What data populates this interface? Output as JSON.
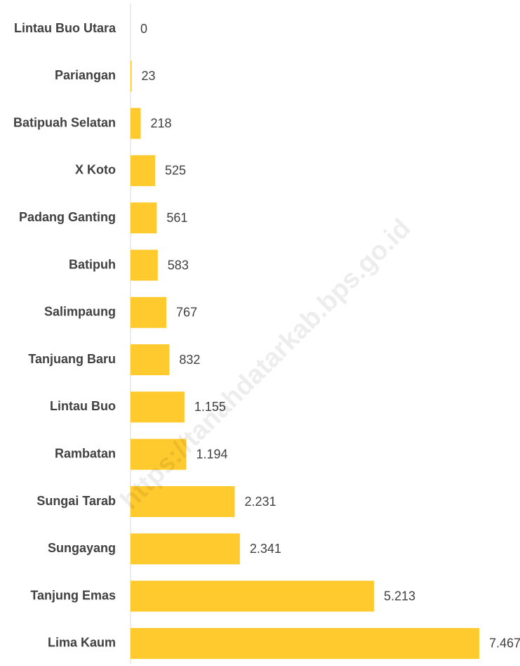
{
  "chart_data": {
    "type": "bar",
    "orientation": "horizontal",
    "color": "#ffca2e",
    "watermark": "https://tanahdatarkab.bps.go.id",
    "categories": [
      "Lintau Buo Utara",
      "Pariangan",
      "Batipuah Selatan",
      "X Koto",
      "Padang Ganting",
      "Batipuh",
      "Salimpaung",
      "Tanjuang Baru",
      "Lintau Buo",
      "Rambatan",
      "Sungai Tarab",
      "Sungayang",
      "Tanjung Emas",
      "Lima Kaum"
    ],
    "values": [
      0,
      23,
      218,
      525,
      561,
      583,
      767,
      832,
      1155,
      1194,
      2231,
      2341,
      5213,
      7467
    ],
    "value_labels": [
      "0",
      "23",
      "218",
      "525",
      "561",
      "583",
      "767",
      "832",
      "1.155",
      "1.194",
      "2.231",
      "2.341",
      "5.213",
      "7.467"
    ]
  }
}
